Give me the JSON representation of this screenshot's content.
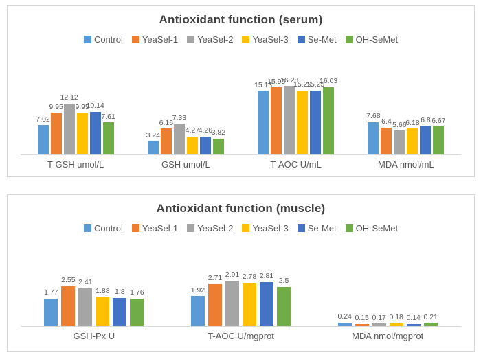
{
  "style": {
    "background": "#ffffff",
    "panel_border": "#d6d6d6",
    "axis_color": "#d9d9d9",
    "text_color": "#595959",
    "title_color": "#404040"
  },
  "chart_data": [
    {
      "type": "bar",
      "title": "Antioxidant function (serum)",
      "categories": [
        "T-GSH umol/L",
        "GSH umol/L",
        "T-AOC U/mL",
        "MDA nmol/mL"
      ],
      "series": [
        {
          "name": "Control",
          "color": "#5B9BD5",
          "values": [
            7.02,
            3.24,
            15.13,
            7.68
          ]
        },
        {
          "name": "YeaSel-1",
          "color": "#ED7D31",
          "values": [
            9.95,
            6.16,
            15.95,
            6.4
          ]
        },
        {
          "name": "YeaSel-2",
          "color": "#A5A5A5",
          "values": [
            12.12,
            7.33,
            16.28,
            5.66
          ]
        },
        {
          "name": "YeaSel-3",
          "color": "#FFC000",
          "values": [
            9.95,
            4.27,
            15.29,
            6.18
          ]
        },
        {
          "name": "Se-Met",
          "color": "#4472C4",
          "values": [
            10.14,
            4.26,
            15.25,
            6.8
          ]
        },
        {
          "name": "OH-SeMet",
          "color": "#70AD47",
          "values": [
            7.61,
            3.82,
            16.03,
            6.67
          ]
        }
      ],
      "xlabel": "",
      "ylabel": "",
      "ylim": [
        0,
        17
      ],
      "grid": false,
      "legend_position": "top",
      "data_labels": true
    },
    {
      "type": "bar",
      "title": "Antioxidant function (muscle)",
      "categories": [
        "GSH-Px U",
        "T-AOC U/mgprot",
        "MDA nmol/mgprot"
      ],
      "series": [
        {
          "name": "Control",
          "color": "#5B9BD5",
          "values": [
            1.77,
            1.92,
            0.24
          ]
        },
        {
          "name": "YeaSel-1",
          "color": "#ED7D31",
          "values": [
            2.55,
            2.71,
            0.15
          ]
        },
        {
          "name": "YeaSel-2",
          "color": "#A5A5A5",
          "values": [
            2.41,
            2.91,
            0.17
          ]
        },
        {
          "name": "YeaSel-3",
          "color": "#FFC000",
          "values": [
            1.88,
            2.78,
            0.18
          ]
        },
        {
          "name": "Se-Met",
          "color": "#4472C4",
          "values": [
            1.8,
            2.81,
            0.14
          ]
        },
        {
          "name": "OH-SeMet",
          "color": "#70AD47",
          "values": [
            1.76,
            2.5,
            0.21
          ]
        }
      ],
      "xlabel": "",
      "ylabel": "",
      "ylim": [
        0,
        3.2
      ],
      "grid": false,
      "legend_position": "top",
      "data_labels": true
    }
  ]
}
